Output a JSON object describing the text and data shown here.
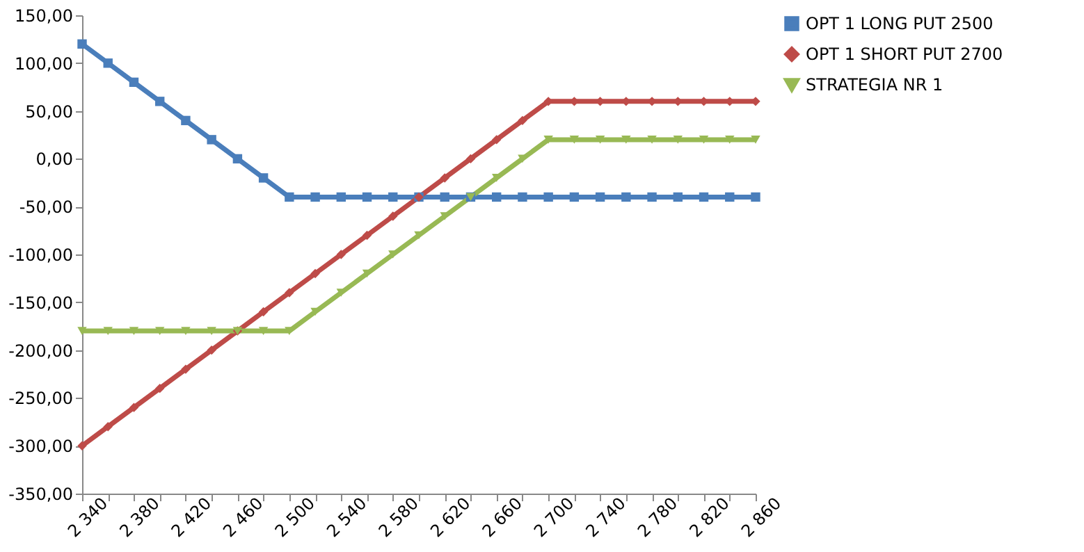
{
  "chart_data": {
    "type": "line",
    "categories": [
      "2 340",
      null,
      "2 380",
      null,
      "2 420",
      null,
      "2 460",
      null,
      "2 500",
      null,
      "2 540",
      null,
      "2 580",
      null,
      "2 620",
      null,
      "2 660",
      null,
      "2 700",
      null,
      "2 740",
      null,
      "2 780",
      null,
      "2 820",
      null,
      "2 860"
    ],
    "series": [
      {
        "name": "OPT 1 LONG PUT 2500",
        "color": "#4a7ebb",
        "marker": "square",
        "values": [
          120,
          100,
          80,
          60,
          40,
          20,
          0,
          -20,
          -40,
          -40,
          -40,
          -40,
          -40,
          -40,
          -40,
          -40,
          -40,
          -40,
          -40,
          -40,
          -40,
          -40,
          -40,
          -40,
          -40,
          -40,
          -40
        ]
      },
      {
        "name": "OPT 1 SHORT PUT 2700",
        "color": "#be4b48",
        "marker": "diamond",
        "values": [
          -300,
          -280,
          -260,
          -240,
          -220,
          -200,
          -180,
          -160,
          -140,
          -120,
          -100,
          -80,
          -60,
          -40,
          -20,
          0,
          20,
          40,
          60,
          60,
          60,
          60,
          60,
          60,
          60,
          60,
          60
        ]
      },
      {
        "name": "STRATEGIA NR 1",
        "color": "#98b954",
        "marker": "triangle-down",
        "values": [
          -180,
          -180,
          -180,
          -180,
          -180,
          -180,
          -180,
          -180,
          -180,
          -160,
          -140,
          -120,
          -100,
          -80,
          -60,
          -40,
          -20,
          0,
          20,
          20,
          20,
          20,
          20,
          20,
          20,
          20,
          20
        ]
      }
    ],
    "ylim": [
      -350,
      150
    ],
    "yticks": [
      {
        "value": -350,
        "label": "-350,00"
      },
      {
        "value": -300,
        "label": "-300,00"
      },
      {
        "value": -250,
        "label": "-250,00"
      },
      {
        "value": -200,
        "label": "-200,00"
      },
      {
        "value": -150,
        "label": "-150,00"
      },
      {
        "value": -100,
        "label": "-100,00"
      },
      {
        "value": -50,
        "label": "-50,00"
      },
      {
        "value": 0,
        "label": "0,00"
      },
      {
        "value": 50,
        "label": "50,00"
      },
      {
        "value": 100,
        "label": "100,00"
      },
      {
        "value": 150,
        "label": "150,00"
      }
    ],
    "grid": false,
    "legend": "right",
    "line_style": "solid"
  }
}
